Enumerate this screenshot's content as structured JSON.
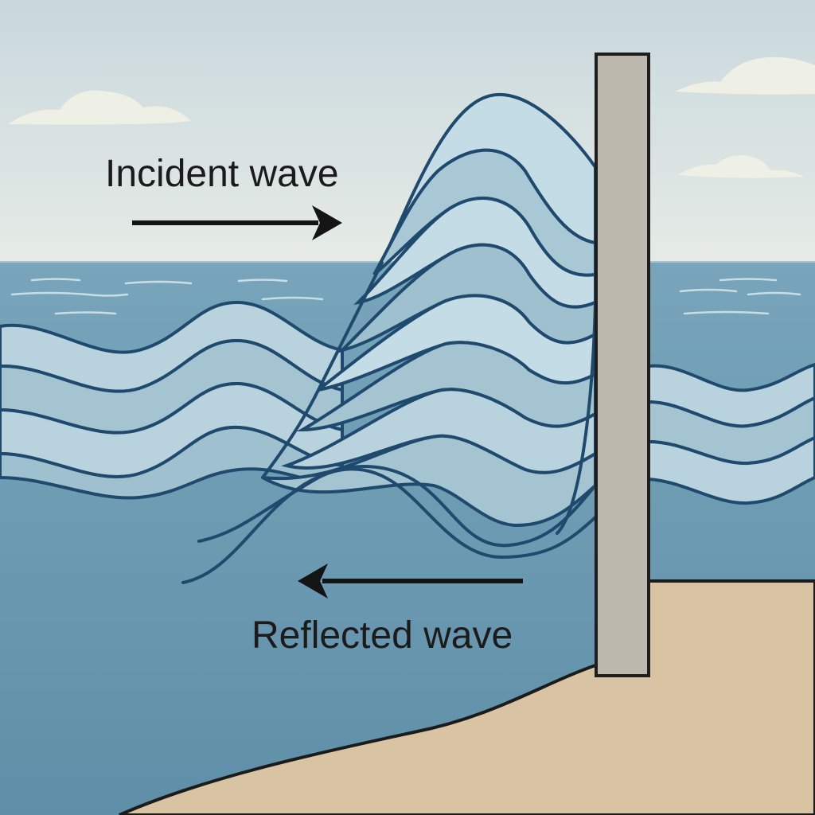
{
  "diagram": {
    "labels": {
      "incident": "Incident wave",
      "reflected": "Reflected wave"
    },
    "colors": {
      "sky_top": "#c9d8dd",
      "sky_bottom": "#e6ebe6",
      "sea": "#6f9db3",
      "sea_deep": "#5f8fa8",
      "wave_light": "#b8d3de",
      "wave_mid": "#8fb4c5",
      "wave_stroke": "#1f4a6e",
      "wall": "#bcb8ae",
      "wall_stroke": "#1e1e1e",
      "sand": "#d8c3a2",
      "arrow": "#141414",
      "cloud": "#eef0e6"
    }
  }
}
